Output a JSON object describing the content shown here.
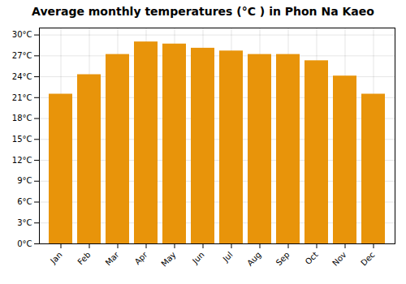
{
  "chart_data": {
    "type": "bar",
    "title": "Average monthly temperatures (°C ) in Phon Na Kaeo",
    "categories": [
      "Jan",
      "Feb",
      "Mar",
      "Apr",
      "May",
      "Jun",
      "Jul",
      "Aug",
      "Sep",
      "Oct",
      "Nov",
      "Dec"
    ],
    "values": [
      21.5,
      24.3,
      27.2,
      29.0,
      28.7,
      28.1,
      27.7,
      27.2,
      27.2,
      26.3,
      24.1,
      21.5
    ],
    "color": "#E8940A",
    "ylim": [
      0,
      31
    ],
    "yticks": [
      {
        "value": 0,
        "label": "0°C"
      },
      {
        "value": 3,
        "label": "3°C"
      },
      {
        "value": 6,
        "label": "6°C"
      },
      {
        "value": 9,
        "label": "9°C"
      },
      {
        "value": 12,
        "label": "12°C"
      },
      {
        "value": 15,
        "label": "15°C"
      },
      {
        "value": 18,
        "label": "18°C"
      },
      {
        "value": 21,
        "label": "21°C"
      },
      {
        "value": 24,
        "label": "24°C"
      },
      {
        "value": 27,
        "label": "27°C"
      },
      {
        "value": 30,
        "label": "30°C"
      }
    ],
    "grid": true
  }
}
